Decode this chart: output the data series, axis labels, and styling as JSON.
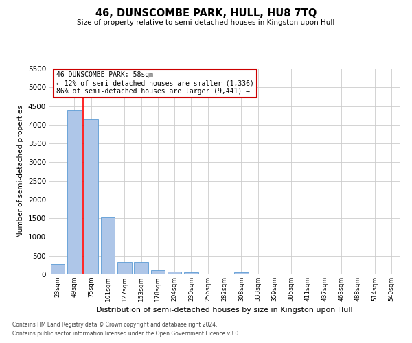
{
  "title": "46, DUNSCOMBE PARK, HULL, HU8 7TQ",
  "subtitle": "Size of property relative to semi-detached houses in Kingston upon Hull",
  "xlabel": "Distribution of semi-detached houses by size in Kingston upon Hull",
  "ylabel": "Number of semi-detached properties",
  "footer1": "Contains HM Land Registry data © Crown copyright and database right 2024.",
  "footer2": "Contains public sector information licensed under the Open Government Licence v3.0.",
  "annotation_title": "46 DUNSCOMBE PARK: 58sqm",
  "annotation_line1": "← 12% of semi-detached houses are smaller (1,336)",
  "annotation_line2": "86% of semi-detached houses are larger (9,441) →",
  "property_size": 58,
  "bar_categories": [
    "23sqm",
    "49sqm",
    "75sqm",
    "101sqm",
    "127sqm",
    "153sqm",
    "178sqm",
    "204sqm",
    "230sqm",
    "256sqm",
    "282sqm",
    "308sqm",
    "333sqm",
    "359sqm",
    "385sqm",
    "411sqm",
    "437sqm",
    "463sqm",
    "488sqm",
    "514sqm",
    "540sqm"
  ],
  "bar_values": [
    270,
    4380,
    4150,
    1530,
    330,
    330,
    110,
    75,
    55,
    0,
    0,
    55,
    0,
    0,
    0,
    0,
    0,
    0,
    0,
    0,
    0
  ],
  "bar_color": "#aec6e8",
  "bar_edge_color": "#5b9bd5",
  "red_line_x": 1.5,
  "ylim": [
    0,
    5500
  ],
  "yticks": [
    0,
    500,
    1000,
    1500,
    2000,
    2500,
    3000,
    3500,
    4000,
    4500,
    5000,
    5500
  ],
  "annotation_box_color": "#ffffff",
  "annotation_box_edge_color": "#cc0000",
  "grid_color": "#cccccc",
  "background_color": "#ffffff"
}
